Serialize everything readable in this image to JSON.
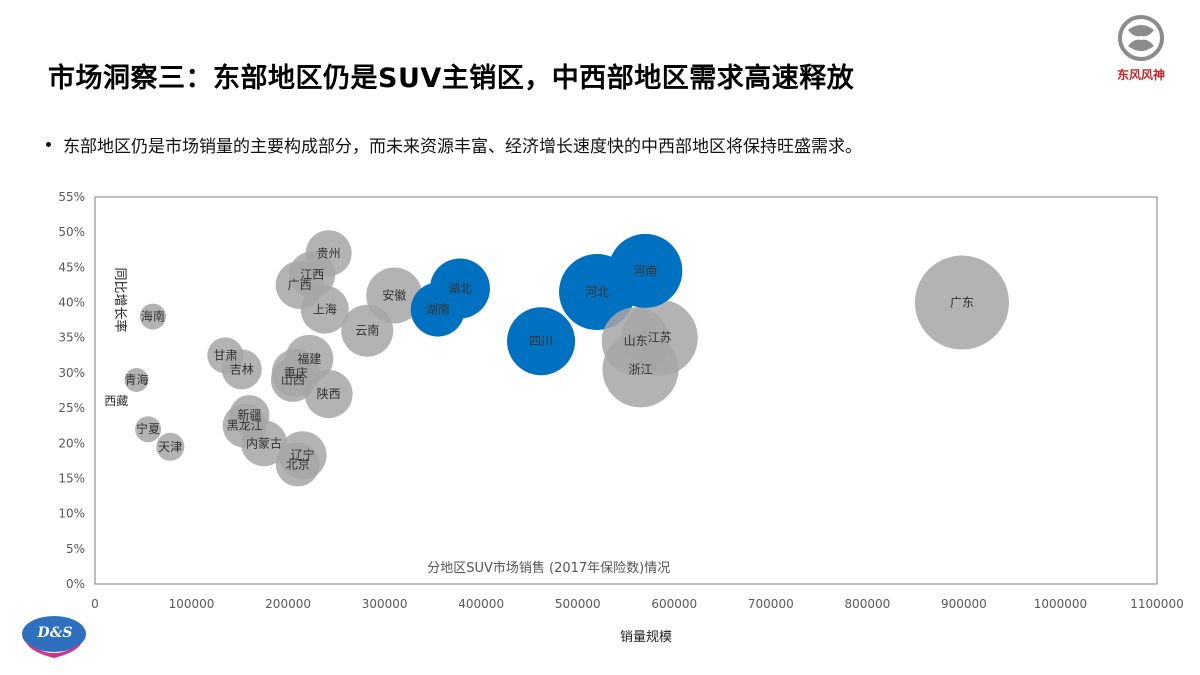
{
  "slide": {
    "title": "市场洞察三：东部地区仍是SUV主销区，中西部地区需求高速释放",
    "bullet": "东部地区仍是市场销量的主要构成部分，而未来资源丰富、经济增长速度快的中西部地区将保持旺盛需求。",
    "brand_logo_text": "东风风神",
    "corner_logo_text": "D&S"
  },
  "colors": {
    "highlight": "#0070c0",
    "default": "#a6a6a6",
    "ds_logo": "#2e6fc0",
    "brand_red": "#c0282a"
  },
  "chart_data": {
    "type": "bubble",
    "title": "分地区SUV市场销售 (2017年保险数)情况",
    "xlabel": "销量规模",
    "ylabel": "同比增长率",
    "xlim": [
      0,
      1100000
    ],
    "ylim": [
      0,
      0.55
    ],
    "x_ticks": [
      0,
      100000,
      200000,
      300000,
      400000,
      500000,
      600000,
      700000,
      800000,
      900000,
      1000000,
      1100000
    ],
    "y_ticks": [
      "0%",
      "5%",
      "10%",
      "15%",
      "20%",
      "25%",
      "30%",
      "35%",
      "40%",
      "45%",
      "50%",
      "55%"
    ],
    "grid": false,
    "points": [
      {
        "name": "西藏",
        "x": 22000,
        "y": 0.26,
        "size": 0,
        "highlight": false
      },
      {
        "name": "青海",
        "x": 43000,
        "y": 0.29,
        "size": 12,
        "highlight": false
      },
      {
        "name": "宁夏",
        "x": 55000,
        "y": 0.22,
        "size": 13,
        "highlight": false
      },
      {
        "name": "海南",
        "x": 60000,
        "y": 0.38,
        "size": 13,
        "highlight": false
      },
      {
        "name": "天津",
        "x": 78000,
        "y": 0.195,
        "size": 14,
        "highlight": false
      },
      {
        "name": "甘肃",
        "x": 135000,
        "y": 0.325,
        "size": 18,
        "highlight": false
      },
      {
        "name": "吉林",
        "x": 152000,
        "y": 0.305,
        "size": 20,
        "highlight": false
      },
      {
        "name": "新疆",
        "x": 160000,
        "y": 0.24,
        "size": 20,
        "highlight": false
      },
      {
        "name": "黑龙江",
        "x": 155000,
        "y": 0.225,
        "size": 22,
        "highlight": false
      },
      {
        "name": "内蒙古",
        "x": 175000,
        "y": 0.2,
        "size": 23,
        "highlight": false
      },
      {
        "name": "广西",
        "x": 212000,
        "y": 0.425,
        "size": 24,
        "highlight": false
      },
      {
        "name": "江西",
        "x": 225000,
        "y": 0.44,
        "size": 23,
        "highlight": false
      },
      {
        "name": "贵州",
        "x": 242000,
        "y": 0.47,
        "size": 23,
        "highlight": false
      },
      {
        "name": "上海",
        "x": 238000,
        "y": 0.39,
        "size": 24,
        "highlight": false
      },
      {
        "name": "重庆",
        "x": 208000,
        "y": 0.3,
        "size": 24,
        "highlight": false
      },
      {
        "name": "山西",
        "x": 205000,
        "y": 0.29,
        "size": 22,
        "highlight": false
      },
      {
        "name": "福建",
        "x": 222000,
        "y": 0.32,
        "size": 24,
        "highlight": false
      },
      {
        "name": "陕西",
        "x": 242000,
        "y": 0.27,
        "size": 24,
        "highlight": false
      },
      {
        "name": "辽宁",
        "x": 215000,
        "y": 0.183,
        "size": 24,
        "highlight": false
      },
      {
        "name": "北京",
        "x": 210000,
        "y": 0.17,
        "size": 22,
        "highlight": false
      },
      {
        "name": "云南",
        "x": 282000,
        "y": 0.36,
        "size": 26,
        "highlight": false
      },
      {
        "name": "安徽",
        "x": 310000,
        "y": 0.41,
        "size": 28,
        "highlight": false
      },
      {
        "name": "湖南",
        "x": 355000,
        "y": 0.39,
        "size": 27,
        "highlight": true
      },
      {
        "name": "湖北",
        "x": 378000,
        "y": 0.42,
        "size": 30,
        "highlight": true
      },
      {
        "name": "四川",
        "x": 462000,
        "y": 0.345,
        "size": 34,
        "highlight": true
      },
      {
        "name": "河北",
        "x": 520000,
        "y": 0.415,
        "size": 38,
        "highlight": true
      },
      {
        "name": "河南",
        "x": 570000,
        "y": 0.445,
        "size": 37,
        "highlight": true
      },
      {
        "name": "江苏",
        "x": 585000,
        "y": 0.35,
        "size": 38,
        "highlight": false
      },
      {
        "name": "山东",
        "x": 560000,
        "y": 0.345,
        "size": 34,
        "highlight": false
      },
      {
        "name": "浙江",
        "x": 565000,
        "y": 0.305,
        "size": 38,
        "highlight": false
      },
      {
        "name": "广东",
        "x": 898000,
        "y": 0.4,
        "size": 47,
        "highlight": false
      }
    ]
  }
}
